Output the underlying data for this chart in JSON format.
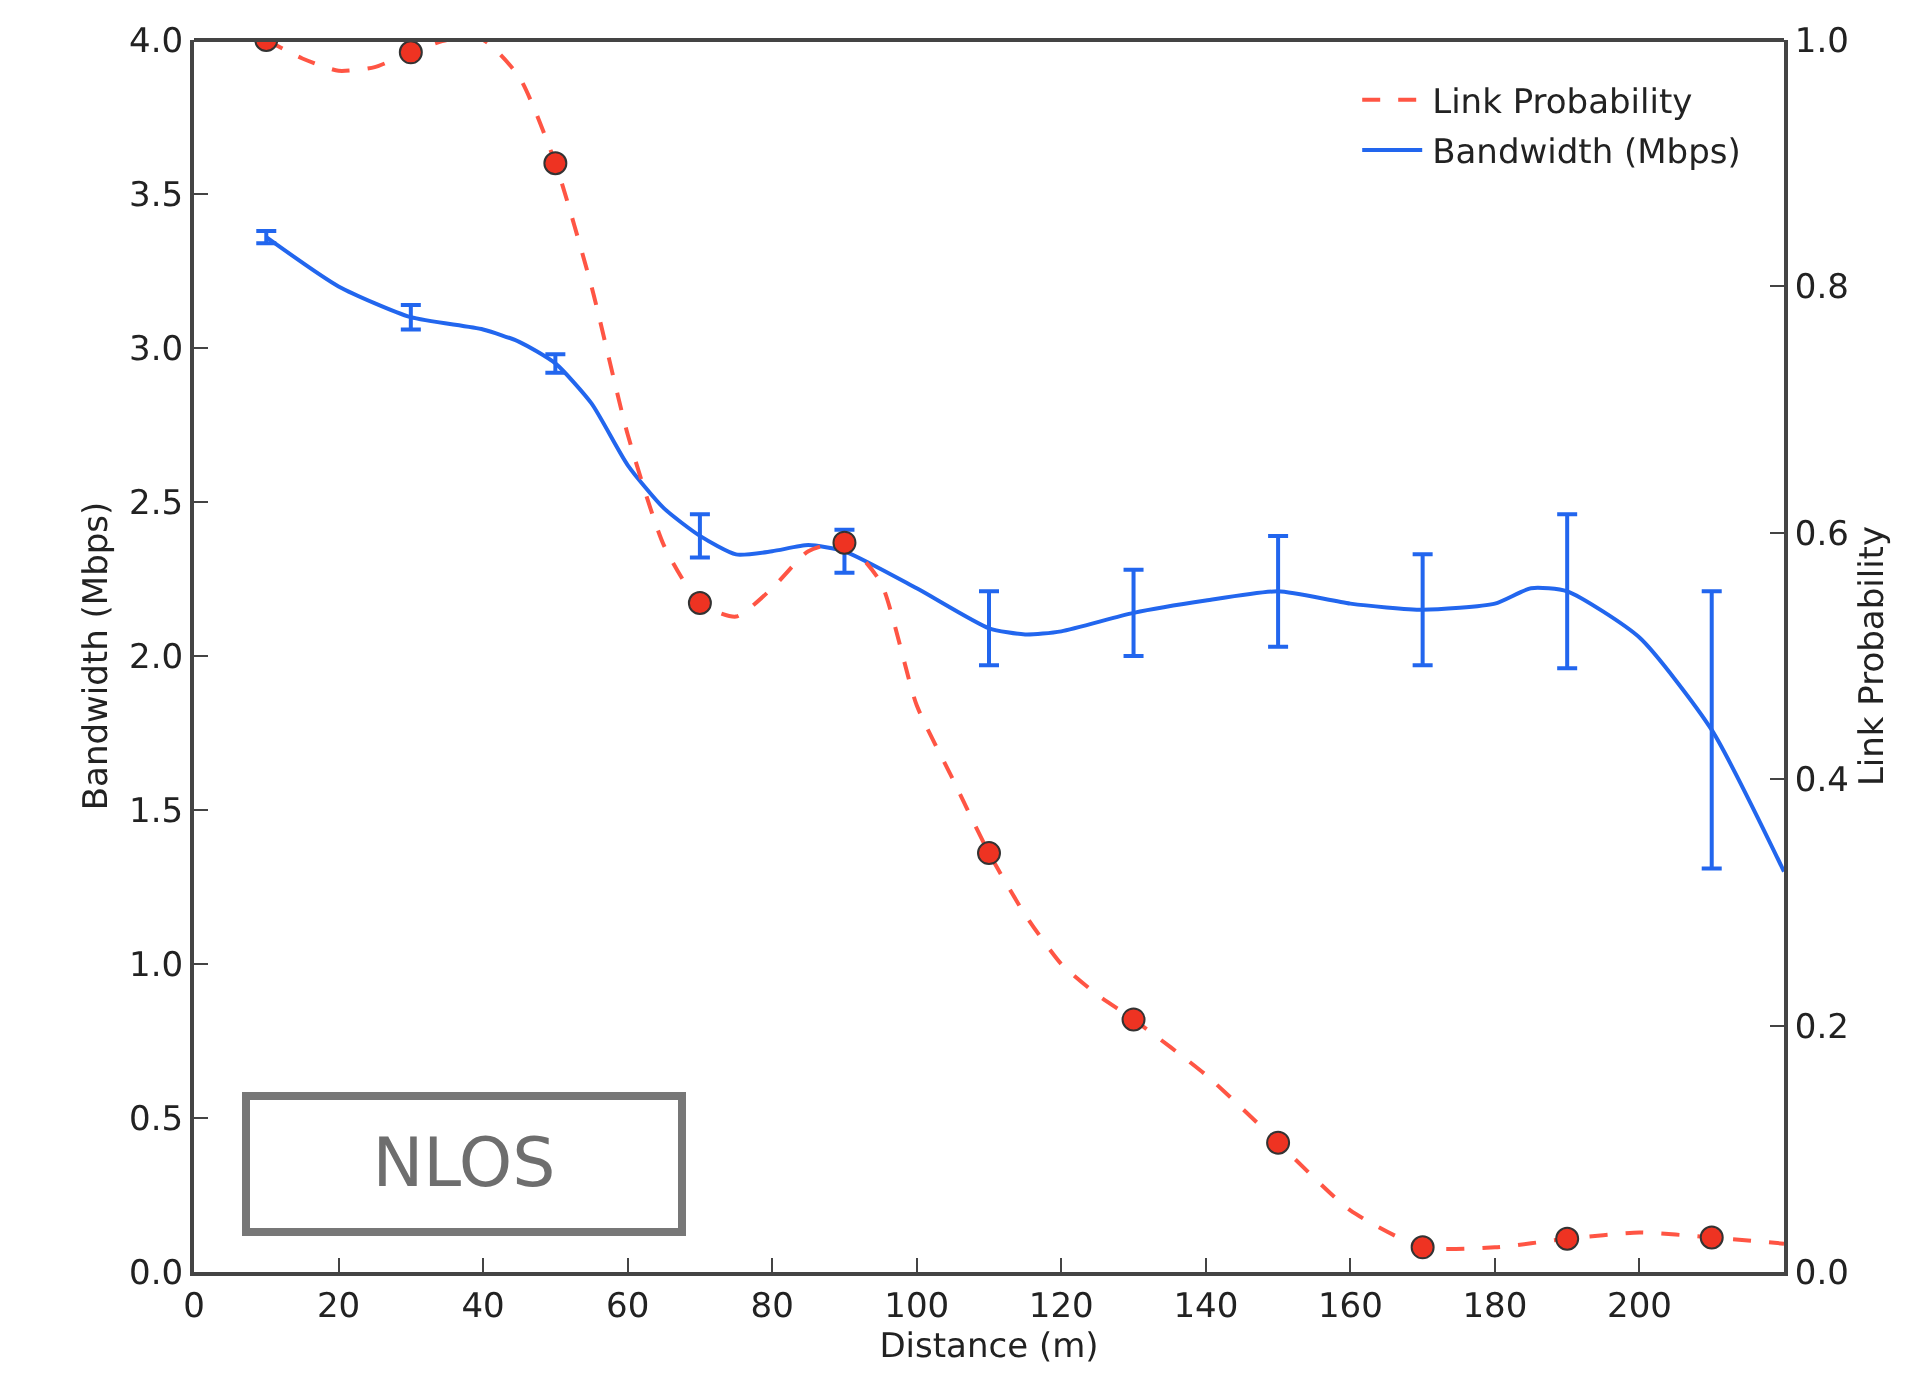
{
  "chart_data": {
    "type": "line",
    "xlabel": "Distance (m)",
    "ylabel": "Bandwidth (Mbps)",
    "y2label": "Link Probability",
    "xlim": [
      0,
      220
    ],
    "xticks": [
      0,
      20,
      40,
      60,
      80,
      100,
      120,
      140,
      160,
      180,
      200
    ],
    "ylim": [
      0,
      4
    ],
    "yticks": [
      {
        "value": 0,
        "label": "0.0"
      },
      0.5,
      {
        "value": 1,
        "label": "1.0"
      },
      1.5,
      {
        "value": 2,
        "label": "2.0"
      },
      2.5,
      {
        "value": 3,
        "label": "3.0"
      },
      3.5,
      {
        "value": 4,
        "label": "4.0"
      }
    ],
    "y2lim": [
      0,
      1
    ],
    "y2ticks": [
      {
        "value": 0,
        "label": "0.0"
      },
      0.2,
      0.4,
      0.6,
      0.8,
      {
        "value": 1,
        "label": "1.0"
      }
    ],
    "legend": "top right",
    "series": [
      {
        "name": "Link Probability",
        "axis": "y2",
        "color": "#ff5544",
        "line_style": "dashed",
        "marker": "none",
        "x": [
          10,
          15,
          20,
          25,
          30,
          35,
          40,
          45,
          50,
          55,
          60,
          65,
          70,
          75,
          80,
          85,
          90,
          95,
          100,
          105,
          110,
          115,
          120,
          125,
          130,
          140,
          150,
          160,
          170,
          180,
          190,
          200,
          210,
          220
        ],
        "values": [
          1.0,
          0.985,
          0.975,
          0.978,
          0.99,
          1.0,
          1.0,
          0.97,
          0.9,
          0.8,
          0.68,
          0.59,
          0.543,
          0.532,
          0.555,
          0.585,
          0.592,
          0.56,
          0.46,
          0.4,
          0.34,
          0.29,
          0.25,
          0.225,
          0.205,
          0.16,
          0.105,
          0.05,
          0.02,
          0.02,
          0.027,
          0.032,
          0.028,
          0.023
        ]
      },
      {
        "name": "Bandwidth (Mbps)",
        "axis": "y",
        "color": "#2266ee",
        "line_style": "solid",
        "marker": "none",
        "x": [
          10,
          20,
          30,
          40,
          45,
          50,
          55,
          60,
          65,
          70,
          75,
          80,
          85,
          90,
          100,
          110,
          115,
          120,
          130,
          140,
          150,
          160,
          170,
          180,
          185,
          190,
          200,
          210,
          220
        ],
        "values": [
          3.36,
          3.2,
          3.1,
          3.06,
          3.02,
          2.95,
          2.82,
          2.62,
          2.48,
          2.39,
          2.33,
          2.34,
          2.36,
          2.34,
          2.22,
          2.09,
          2.07,
          2.08,
          2.14,
          2.18,
          2.21,
          2.17,
          2.15,
          2.17,
          2.22,
          2.21,
          2.06,
          1.76,
          1.3
        ],
        "errors": [
          0.02,
          null,
          0.04,
          null,
          null,
          0.03,
          null,
          null,
          null,
          0.07,
          null,
          null,
          null,
          0.07,
          null,
          0.12,
          null,
          null,
          0.14,
          null,
          0.18,
          null,
          0.18,
          null,
          null,
          0.25,
          null,
          0.45,
          null
        ]
      },
      {
        "type": "scatter",
        "axis": "y2",
        "color": "#ee3322",
        "marker": "circle",
        "x": [
          10,
          30,
          50,
          70,
          90,
          110,
          130,
          150,
          170,
          190,
          210
        ],
        "values": [
          1.0,
          0.99,
          0.9,
          0.543,
          0.592,
          0.34,
          0.205,
          0.105,
          0.02,
          0.027,
          0.028
        ]
      }
    ],
    "annotations": [
      "NLOS"
    ]
  }
}
